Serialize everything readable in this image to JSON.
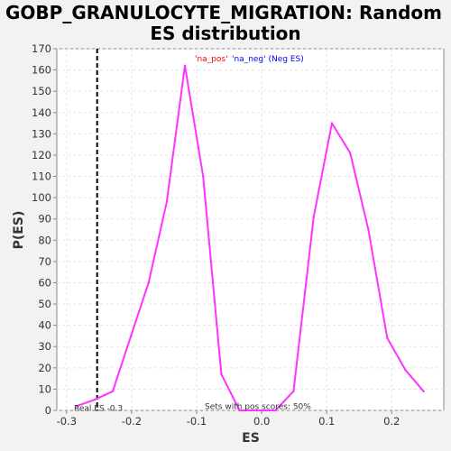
{
  "chart_data": {
    "type": "line",
    "title_line1": "GOBP_GRANULOCYTE_MIGRATION: Random",
    "title_line2": "ES distribution",
    "xlabel": "ES",
    "ylabel": "P(ES)",
    "xlim": [
      -0.315,
      0.28
    ],
    "ylim": [
      0,
      170
    ],
    "xticks": [
      -0.3,
      -0.2,
      -0.1,
      0.0,
      0.1,
      0.2
    ],
    "xtick_labels": [
      "-0.3",
      "-0.2",
      "-0.1",
      "0.0",
      "0.1",
      "0.2"
    ],
    "yticks": [
      0,
      10,
      20,
      30,
      40,
      50,
      60,
      70,
      80,
      90,
      100,
      110,
      120,
      130,
      140,
      150,
      160,
      170
    ],
    "grid": true,
    "series": [
      {
        "color": "#ff33ff",
        "x": [
          -0.285,
          -0.257,
          -0.229,
          -0.201,
          -0.174,
          -0.146,
          -0.118,
          -0.09,
          -0.062,
          -0.034,
          -0.007,
          0.021,
          0.049,
          0.08,
          0.108,
          0.136,
          0.164,
          0.193,
          0.221,
          0.249
        ],
        "y": [
          2,
          5,
          9,
          35,
          60,
          98,
          162,
          110,
          17,
          0,
          0,
          0,
          9,
          91,
          135,
          121,
          85,
          34,
          19,
          9
        ]
      }
    ],
    "real_es": {
      "x": -0.253,
      "label": "Real ES -0.3",
      "color": "#000000"
    },
    "legend": {
      "placement": "top-center",
      "pos_text": "'na_pos'",
      "pos_color": "#ff0000",
      "neg_text": "'na_neg' (Neg ES)",
      "neg_color": "#0000ff"
    },
    "annotation": "Sets with pos scores: 50%"
  },
  "colors": {
    "background": "#f2f2f2",
    "plot_background": "#ffffff",
    "grid": "#e3e3e3",
    "axis": "#888888"
  }
}
